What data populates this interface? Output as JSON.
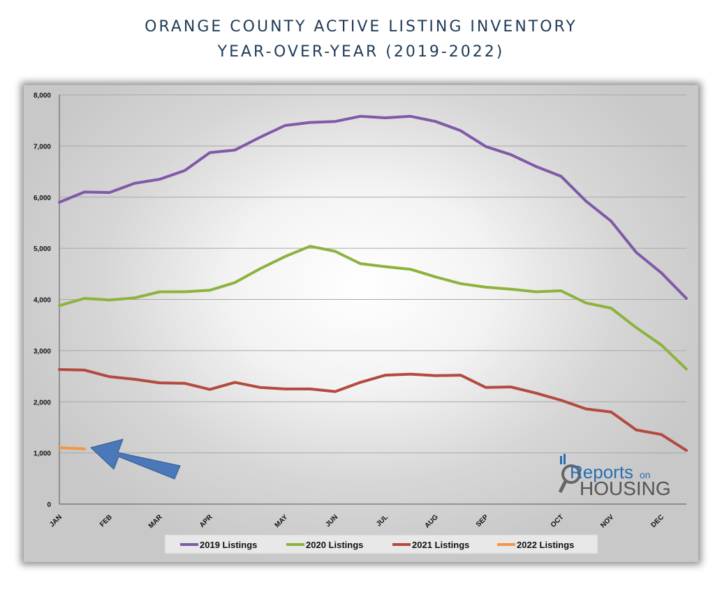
{
  "title_line1": "ORANGE COUNTY ACTIVE LISTING INVENTORY",
  "title_line2": "YEAR-OVER-YEAR (2019-2022)",
  "logo": {
    "line1": "Reports",
    "line1_small": "on",
    "line2": "HOUSING"
  },
  "colors": {
    "s2019": "#7f5aa8",
    "s2020": "#8cb33e",
    "s2021": "#b34a3f",
    "s2022": "#f0974a",
    "arrow": "#4a78b8"
  },
  "chart_data": {
    "type": "line",
    "title": "ORANGE COUNTY ACTIVE LISTING INVENTORY YEAR-OVER-YEAR (2019-2022)",
    "xlabel": "",
    "ylabel": "",
    "ylim": [
      0,
      8000
    ],
    "yticks": [
      "0",
      "1,000",
      "2,000",
      "3,000",
      "4,000",
      "5,000",
      "6,000",
      "7,000",
      "8,000"
    ],
    "xtick_labels": [
      "JAN",
      "FEB",
      "MAR",
      "APR",
      "MAY",
      "JUN",
      "JUL",
      "AUG",
      "SEP",
      "OCT",
      "NOV",
      "DEC"
    ],
    "xtick_positions": [
      0,
      2,
      4,
      6,
      9,
      11,
      13,
      15,
      17,
      20,
      22,
      24
    ],
    "grid": true,
    "legend": "bottom",
    "x_count": 26,
    "series": [
      {
        "name": "2019 Listings",
        "color_key": "s2019",
        "values": [
          5900,
          6100,
          6090,
          6270,
          6350,
          6520,
          6870,
          6920,
          7170,
          7400,
          7460,
          7480,
          7580,
          7550,
          7580,
          7480,
          7300,
          6990,
          6830,
          6600,
          6410,
          5920,
          5530,
          4920,
          4520,
          4020
        ]
      },
      {
        "name": "2020 Listings",
        "color_key": "s2020",
        "values": [
          3880,
          4020,
          3990,
          4030,
          4150,
          4150,
          4180,
          4330,
          4600,
          4840,
          5040,
          4940,
          4700,
          4640,
          4590,
          4440,
          4310,
          4240,
          4200,
          4150,
          4170,
          3930,
          3830,
          3450,
          3110,
          2640
        ]
      },
      {
        "name": "2021 Listings",
        "color_key": "s2021",
        "values": [
          2630,
          2620,
          2490,
          2440,
          2370,
          2360,
          2240,
          2380,
          2280,
          2250,
          2250,
          2200,
          2380,
          2520,
          2540,
          2510,
          2520,
          2280,
          2290,
          2170,
          2030,
          1860,
          1800,
          1450,
          1360,
          1050
        ]
      },
      {
        "name": "2022 Listings",
        "color_key": "s2022",
        "values": [
          1100,
          1080
        ]
      }
    ]
  }
}
